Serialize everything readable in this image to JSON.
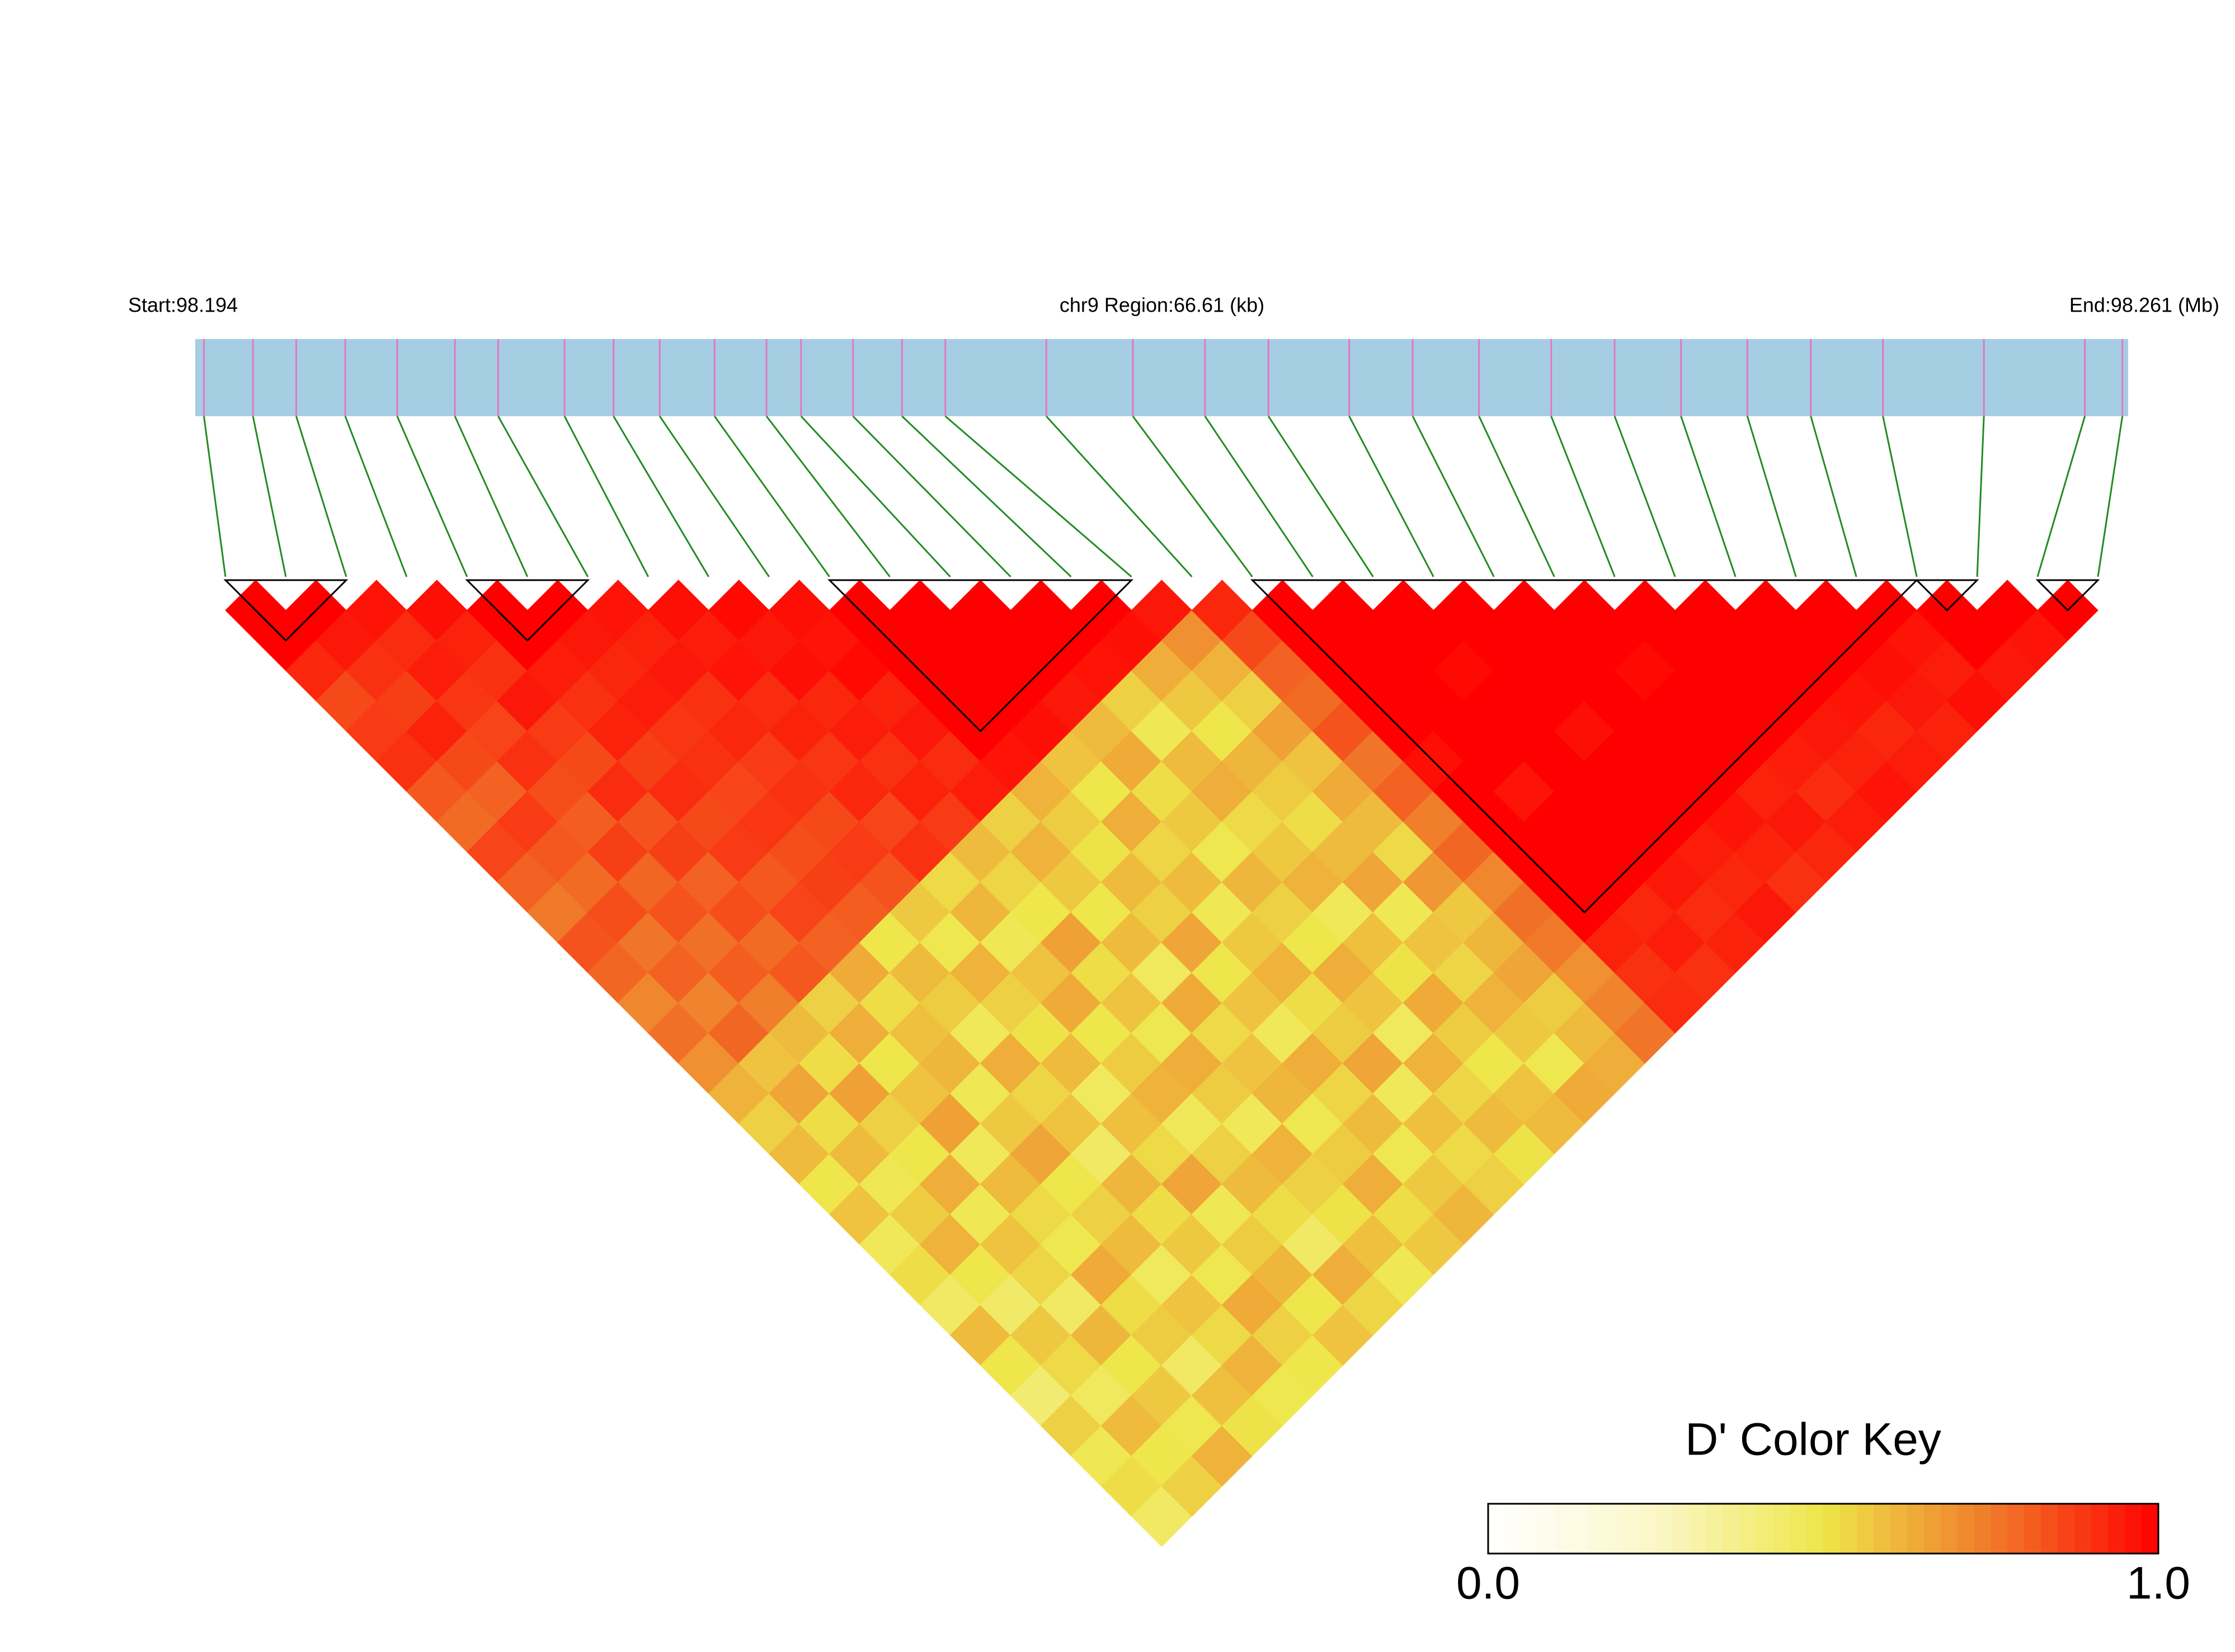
{
  "chart_data": {
    "type": "heatmap",
    "start_label": "Start:98.194",
    "region_label": "chr9 Region:66.61 (kb)",
    "end_label": "End:98.261 (Mb)",
    "xlim": [
      98.194,
      98.261
    ],
    "snp_positions": [
      98.1943,
      98.196,
      98.1975,
      98.1992,
      98.201,
      98.203,
      98.2045,
      98.2068,
      98.2085,
      98.2101,
      98.212,
      98.2138,
      98.215,
      98.2168,
      98.2185,
      98.22,
      98.2235,
      98.2265,
      98.229,
      98.2312,
      98.234,
      98.2362,
      98.2385,
      98.241,
      98.2432,
      98.2455,
      98.2478,
      98.25,
      98.2525,
      98.256,
      98.2595,
      98.2608
    ],
    "dprime": [
      [
        1,
        1,
        0.92,
        0.85,
        0.88,
        0.9,
        0.82,
        0.78,
        0.86,
        0.8,
        0.75,
        0.83,
        0.79,
        0.72,
        0.77,
        0.7,
        0.62,
        0.55,
        0.6,
        0.5,
        0.58,
        0.47,
        0.52,
        0.45,
        0.6,
        0.5,
        0.42,
        0.55,
        0.48,
        0.52,
        0.45
      ],
      [
        1,
        0.95,
        0.9,
        0.87,
        0.93,
        0.85,
        0.8,
        0.88,
        0.82,
        0.78,
        0.84,
        0.76,
        0.8,
        0.73,
        0.79,
        0.58,
        0.65,
        0.52,
        0.6,
        0.48,
        0.56,
        0.62,
        0.5,
        0.44,
        0.57,
        0.53,
        0.46,
        0.6,
        0.5,
        0.55
      ],
      [
        0.96,
        0.91,
        0.94,
        0.89,
        0.86,
        0.9,
        0.84,
        0.81,
        0.87,
        0.79,
        0.83,
        0.77,
        0.81,
        0.74,
        0.6,
        0.52,
        0.66,
        0.55,
        0.5,
        0.63,
        0.48,
        0.58,
        0.54,
        0.45,
        0.61,
        0.5,
        0.57,
        0.49,
        0.62
      ],
      [
        0.97,
        0.93,
        0.9,
        0.95,
        0.88,
        0.85,
        0.91,
        0.83,
        0.87,
        0.8,
        0.84,
        0.78,
        0.82,
        0.55,
        0.63,
        0.5,
        0.58,
        0.66,
        0.47,
        0.6,
        0.53,
        0.49,
        0.64,
        0.52,
        0.56,
        0.45,
        0.59,
        0.51
      ],
      [
        1,
        1,
        0.94,
        0.9,
        0.93,
        0.87,
        0.91,
        0.85,
        0.88,
        0.82,
        0.86,
        0.8,
        0.64,
        0.52,
        0.59,
        0.61,
        0.48,
        0.57,
        0.65,
        0.5,
        0.55,
        0.6,
        0.46,
        0.58,
        0.53,
        0.62,
        0.49
      ],
      [
        1,
        0.95,
        0.92,
        0.94,
        0.89,
        0.9,
        0.86,
        0.89,
        0.84,
        0.87,
        0.81,
        0.5,
        0.6,
        0.56,
        0.47,
        0.63,
        0.54,
        0.58,
        0.45,
        0.61,
        0.52,
        0.57,
        0.49,
        0.64,
        0.55,
        0.5
      ],
      [
        0.96,
        0.93,
        0.95,
        0.9,
        0.92,
        0.88,
        0.9,
        0.85,
        0.88,
        0.83,
        0.57,
        0.49,
        0.62,
        0.55,
        0.51,
        0.6,
        0.46,
        0.59,
        0.53,
        0.65,
        0.48,
        0.56,
        0.61,
        0.5,
        0.58
      ],
      [
        0.97,
        0.94,
        0.96,
        0.91,
        0.93,
        0.89,
        0.92,
        0.86,
        0.9,
        0.53,
        0.61,
        0.48,
        0.58,
        0.64,
        0.5,
        0.56,
        0.62,
        0.47,
        0.55,
        0.6,
        0.52,
        0.45,
        0.63,
        0.54
      ],
      [
        0.98,
        0.95,
        0.97,
        0.92,
        0.94,
        0.9,
        0.93,
        0.88,
        0.6,
        0.54,
        0.5,
        0.66,
        0.52,
        0.58,
        0.49,
        0.63,
        0.56,
        0.47,
        0.62,
        0.55,
        0.51,
        0.59,
        0.48
      ],
      [
        0.97,
        0.96,
        0.98,
        0.93,
        0.95,
        0.91,
        0.94,
        0.55,
        0.62,
        0.57,
        0.5,
        0.6,
        0.46,
        0.64,
        0.53,
        0.58,
        0.61,
        0.49,
        0.56,
        0.63,
        0.52,
        0.57
      ],
      [
        1,
        1,
        1,
        1,
        1,
        0.96,
        0.62,
        0.56,
        0.51,
        0.6,
        0.55,
        0.65,
        0.5,
        0.58,
        0.47,
        0.63,
        0.54,
        0.6,
        0.49,
        0.57,
        0.61
      ],
      [
        1,
        1,
        1,
        1,
        0.97,
        0.58,
        0.5,
        0.63,
        0.54,
        0.6,
        0.48,
        0.57,
        0.62,
        0.52,
        0.56,
        0.65,
        0.47,
        0.59,
        0.53,
        0.55
      ],
      [
        1,
        1,
        1,
        0.95,
        0.6,
        0.64,
        0.52,
        0.57,
        0.49,
        0.61,
        0.55,
        0.5,
        0.63,
        0.58,
        0.46,
        0.62,
        0.54,
        0.6,
        0.51
      ],
      [
        1,
        1,
        0.96,
        0.55,
        0.48,
        0.6,
        0.63,
        0.53,
        0.57,
        0.62,
        0.47,
        0.59,
        0.51,
        0.64,
        0.56,
        0.5,
        0.58,
        0.6
      ],
      [
        1,
        0.97,
        0.63,
        0.57,
        0.5,
        0.61,
        0.56,
        0.52,
        0.6,
        0.65,
        0.48,
        0.58,
        0.54,
        0.62,
        0.57,
        0.49,
        0.64
      ],
      [
        0.95,
        0.7,
        0.62,
        0.55,
        0.66,
        0.58,
        0.64,
        0.6,
        0.53,
        0.68,
        0.57,
        0.61,
        0.65,
        0.56,
        0.6,
        0.63
      ],
      [
        0.92,
        0.85,
        0.8,
        0.78,
        0.83,
        0.76,
        0.8,
        0.74,
        0.79,
        0.72,
        0.77,
        0.75,
        0.7,
        0.73,
        0.76
      ],
      [
        1,
        1,
        1,
        1,
        1,
        0.97,
        1,
        1,
        1,
        1,
        1,
        0.93,
        0.9,
        0.91
      ],
      [
        1,
        1,
        1,
        1,
        1,
        1,
        0.96,
        1,
        1,
        1,
        0.92,
        0.94,
        0.9
      ],
      [
        1,
        1,
        0.98,
        1,
        1,
        1,
        1,
        1,
        1,
        0.95,
        0.91,
        0.93
      ],
      [
        1,
        1,
        1,
        1,
        0.97,
        1,
        1,
        1,
        0.94,
        0.92,
        0.95
      ],
      [
        1,
        1,
        1,
        1,
        1,
        1,
        1,
        0.96,
        0.93,
        0.9
      ],
      [
        1,
        1,
        0.98,
        1,
        1,
        1,
        0.93,
        0.95,
        0.92
      ],
      [
        1,
        1,
        1,
        1,
        1,
        0.94,
        0.91,
        0.94
      ],
      [
        1,
        1,
        1,
        1,
        0.95,
        0.93,
        0.96
      ],
      [
        1,
        1,
        1,
        0.96,
        0.92,
        0.94
      ],
      [
        1,
        1,
        0.97,
        0.95,
        0.93
      ],
      [
        1,
        0.96,
        0.94,
        0.97
      ],
      [
        1,
        1,
        0.95
      ],
      [
        1,
        0.96
      ],
      [
        1
      ]
    ],
    "blocks": [
      [
        0,
        2
      ],
      [
        4,
        6
      ],
      [
        10,
        15
      ],
      [
        17,
        28
      ],
      [
        28,
        29
      ],
      [
        30,
        31
      ]
    ],
    "colorscale": [
      "#ffffff",
      "#fbf7c8",
      "#eee64a",
      "#f07a2a",
      "#ff0000"
    ],
    "bar_color": "#a6cee3",
    "snp_color": "#e377c2",
    "connector_color": "#228b22",
    "color_key": {
      "title": "D' Color Key",
      "ticks": [
        {
          "value": 0,
          "label": "0.0"
        },
        {
          "value": 1,
          "label": "1.0"
        }
      ]
    }
  }
}
